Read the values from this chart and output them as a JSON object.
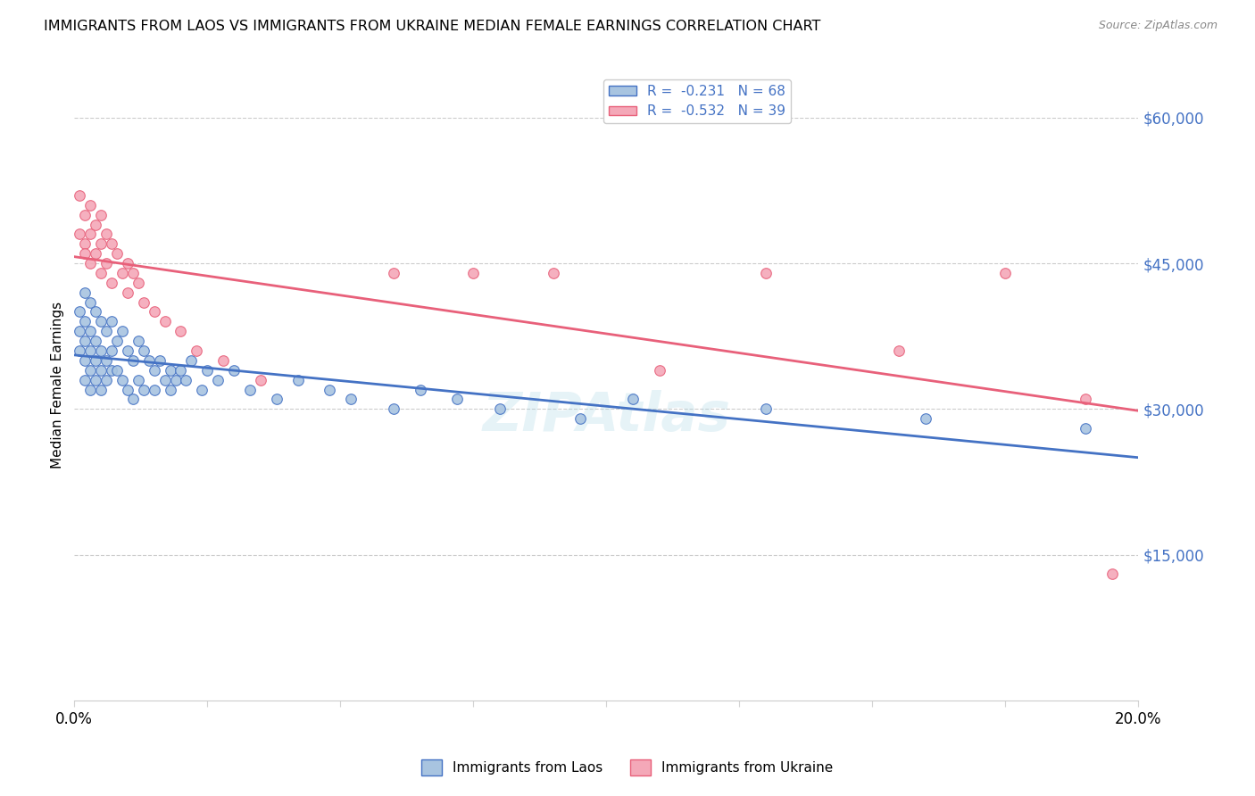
{
  "title": "IMMIGRANTS FROM LAOS VS IMMIGRANTS FROM UKRAINE MEDIAN FEMALE EARNINGS CORRELATION CHART",
  "source": "Source: ZipAtlas.com",
  "ylabel": "Median Female Earnings",
  "y_ticks": [
    0,
    15000,
    30000,
    45000,
    60000
  ],
  "y_tick_labels": [
    "",
    "$15,000",
    "$30,000",
    "$45,000",
    "$60,000"
  ],
  "x_min": 0.0,
  "x_max": 0.2,
  "y_min": 0,
  "y_max": 65000,
  "laos_color": "#a8c4e0",
  "ukraine_color": "#f4a8b8",
  "laos_line_color": "#4472c4",
  "ukraine_line_color": "#e8607a",
  "R_laos": -0.231,
  "N_laos": 68,
  "R_ukraine": -0.532,
  "N_ukraine": 39,
  "legend_label_laos": "Immigrants from Laos",
  "legend_label_ukraine": "Immigrants from Ukraine",
  "watermark": "ZIPAtlas",
  "laos_x": [
    0.001,
    0.001,
    0.001,
    0.002,
    0.002,
    0.002,
    0.002,
    0.002,
    0.003,
    0.003,
    0.003,
    0.003,
    0.003,
    0.004,
    0.004,
    0.004,
    0.004,
    0.005,
    0.005,
    0.005,
    0.005,
    0.006,
    0.006,
    0.006,
    0.007,
    0.007,
    0.007,
    0.008,
    0.008,
    0.009,
    0.009,
    0.01,
    0.01,
    0.011,
    0.011,
    0.012,
    0.012,
    0.013,
    0.013,
    0.014,
    0.015,
    0.015,
    0.016,
    0.017,
    0.018,
    0.018,
    0.019,
    0.02,
    0.021,
    0.022,
    0.024,
    0.025,
    0.027,
    0.03,
    0.033,
    0.038,
    0.042,
    0.048,
    0.052,
    0.06,
    0.065,
    0.072,
    0.08,
    0.095,
    0.105,
    0.13,
    0.16,
    0.19
  ],
  "laos_y": [
    40000,
    38000,
    36000,
    42000,
    39000,
    37000,
    35000,
    33000,
    41000,
    38000,
    36000,
    34000,
    32000,
    40000,
    37000,
    35000,
    33000,
    39000,
    36000,
    34000,
    32000,
    38000,
    35000,
    33000,
    39000,
    36000,
    34000,
    37000,
    34000,
    38000,
    33000,
    36000,
    32000,
    35000,
    31000,
    37000,
    33000,
    36000,
    32000,
    35000,
    34000,
    32000,
    35000,
    33000,
    34000,
    32000,
    33000,
    34000,
    33000,
    35000,
    32000,
    34000,
    33000,
    34000,
    32000,
    31000,
    33000,
    32000,
    31000,
    30000,
    32000,
    31000,
    30000,
    29000,
    31000,
    30000,
    29000,
    28000
  ],
  "ukraine_x": [
    0.001,
    0.001,
    0.002,
    0.002,
    0.002,
    0.003,
    0.003,
    0.003,
    0.004,
    0.004,
    0.005,
    0.005,
    0.005,
    0.006,
    0.006,
    0.007,
    0.007,
    0.008,
    0.009,
    0.01,
    0.01,
    0.011,
    0.012,
    0.013,
    0.015,
    0.017,
    0.02,
    0.023,
    0.028,
    0.035,
    0.06,
    0.075,
    0.09,
    0.11,
    0.13,
    0.155,
    0.175,
    0.19,
    0.195
  ],
  "ukraine_y": [
    52000,
    48000,
    50000,
    47000,
    46000,
    51000,
    48000,
    45000,
    49000,
    46000,
    50000,
    47000,
    44000,
    48000,
    45000,
    47000,
    43000,
    46000,
    44000,
    45000,
    42000,
    44000,
    43000,
    41000,
    40000,
    39000,
    38000,
    36000,
    35000,
    33000,
    44000,
    44000,
    44000,
    34000,
    44000,
    36000,
    44000,
    31000,
    13000
  ]
}
